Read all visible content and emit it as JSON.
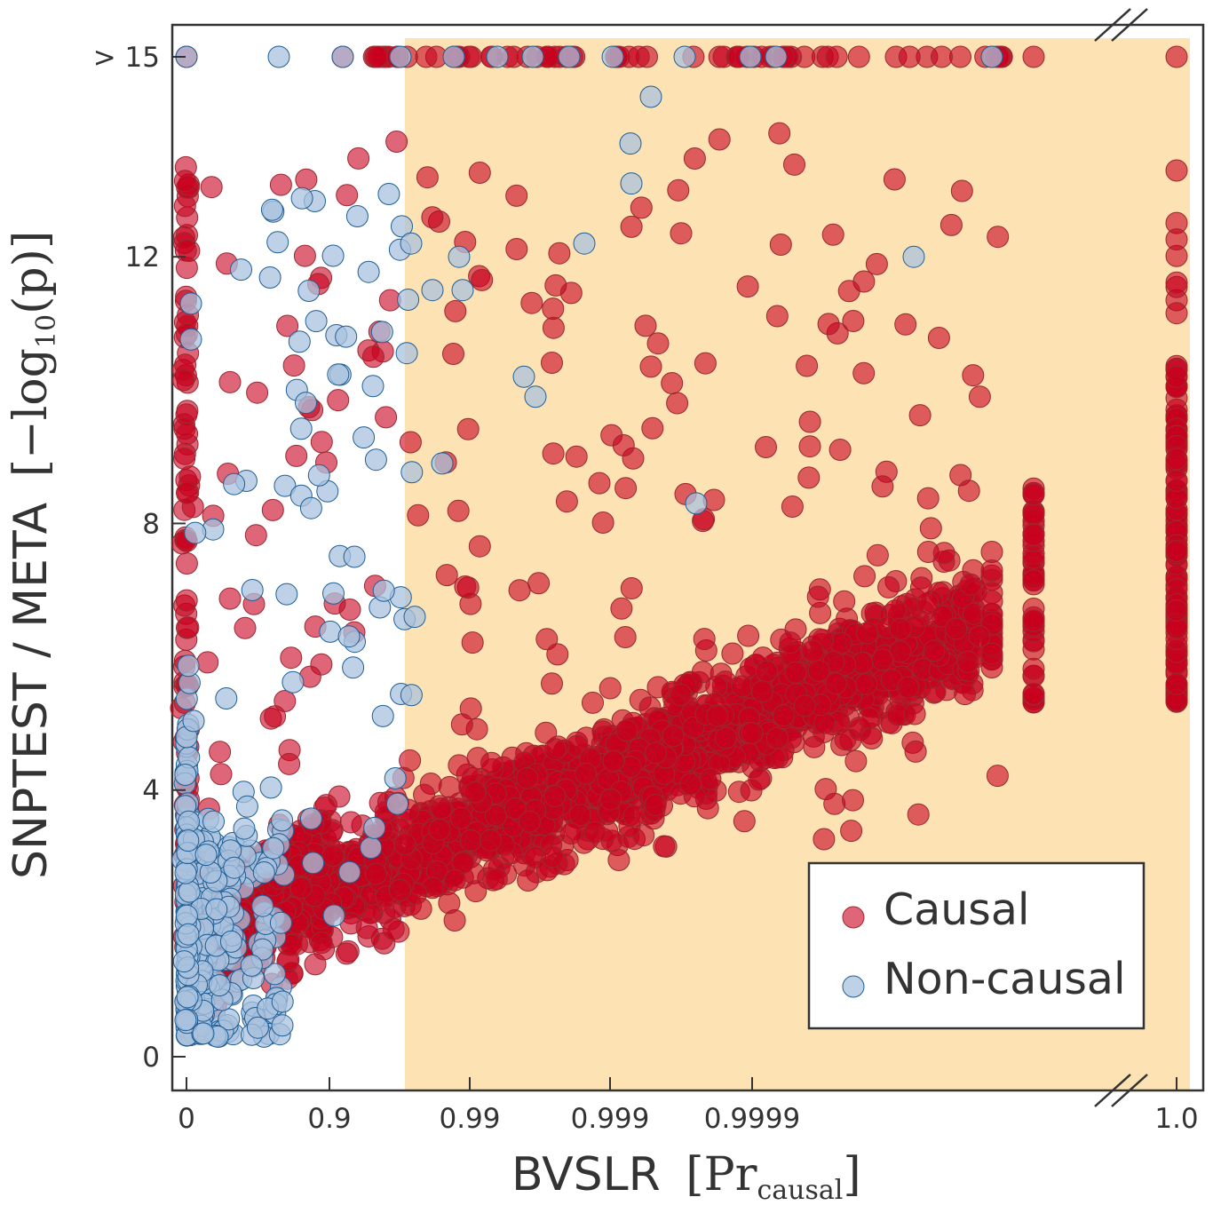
{
  "chart_data": {
    "type": "scatter",
    "xlabel": "BVSLR",
    "xlabel_math": {
      "bracket_open": "[",
      "main": "Pr",
      "subscript": "causal",
      "bracket_close": "]"
    },
    "ylabel": "SNPTEST / META",
    "ylabel_math": {
      "bracket_open": "[",
      "prefix": "−log",
      "subscript": "10",
      "arg": "(p)",
      "bracket_close": "]"
    },
    "x_scale": "logit-like (ticks at 0, 0.9, 0.99, 0.999, 0.9999, 1.0; axis broken before 1.0)",
    "x_ticks": [
      "0",
      "0.9",
      "0.99",
      "0.999",
      "0.9999",
      "1.0"
    ],
    "y_ticks": [
      "0",
      "4",
      "8",
      "12",
      "> 15"
    ],
    "y_cap": 15,
    "ylim": [
      0,
      15
    ],
    "highlight_region": {
      "x_from": 0.95,
      "x_to": 1.0,
      "color": "#fde3b4"
    },
    "axis_break": true,
    "grid": false,
    "legend_position": "bottom-right",
    "series": [
      {
        "name": "Causal",
        "color": "#c8001e",
        "edge": "#9a2a30",
        "alpha": 0.6
      },
      {
        "name": "Non-causal",
        "color": "#a9c1de",
        "edge": "#1f5f96",
        "alpha": 0.75
      }
    ],
    "description_points": {
      "causal_trend": [
        [
          0.6,
          3.0
        ],
        [
          0.95,
          3.4
        ],
        [
          0.99,
          4.2
        ],
        [
          0.999,
          4.8
        ],
        [
          0.9999,
          5.6
        ],
        [
          0.99999,
          6.6
        ]
      ],
      "causal_pileup_at_1": {
        "x": 1.0,
        "y_range": [
          5.3,
          10.4
        ]
      },
      "causal_capped_above_15": true,
      "noncausal_cluster": {
        "x_range": [
          0,
          0.5
        ],
        "y_range": [
          0.3,
          3.5
        ]
      }
    }
  }
}
